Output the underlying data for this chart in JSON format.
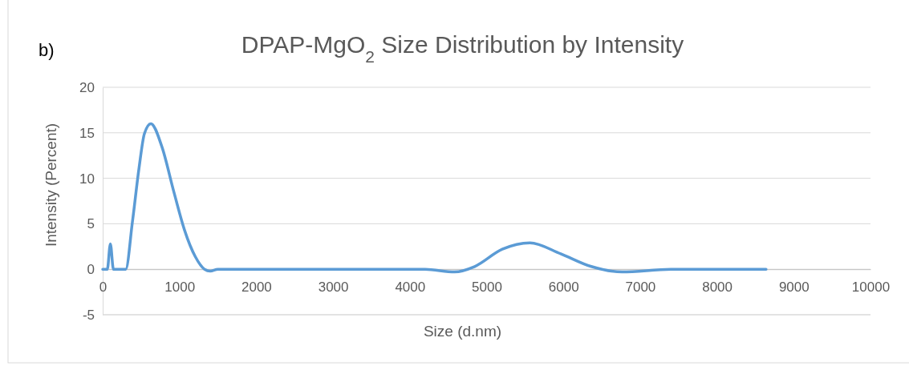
{
  "chart_data": {
    "type": "line",
    "title": "DPAP-MgO$_{2}$ Size Distribution by Intensity",
    "annotations": [
      "b)"
    ],
    "xlabel": "Size (d.nm)",
    "ylabel": "Intensity (Percent)",
    "xlim": [
      0,
      10000
    ],
    "xticks": [
      0,
      1000,
      2000,
      3000,
      4000,
      5000,
      6000,
      7000,
      8000,
      9000,
      10000
    ],
    "ylim": [
      -5,
      20
    ],
    "yticks": [
      -5,
      0,
      5,
      10,
      15,
      20
    ],
    "grid": "y",
    "marker": "none",
    "line_style": "solid",
    "series": [
      {
        "color": "#5b9bd5",
        "x": [
          0,
          60,
          100,
          140,
          180,
          280,
          300,
          387,
          473,
          543,
          627,
          770,
          927,
          1066,
          1205,
          1327,
          1400,
          1500,
          2500,
          3500,
          4200,
          4583,
          4845,
          5204,
          5564,
          5965,
          6364,
          6766,
          7400,
          8000,
          8640
        ],
        "values": [
          0,
          0,
          2.8,
          0,
          0,
          0,
          0,
          5.2,
          11.1,
          14.9,
          16,
          13.5,
          8.5,
          4.3,
          1.4,
          0,
          -0.2,
          0,
          0,
          0,
          0,
          -0.3,
          0.3,
          2.2,
          2.9,
          1.7,
          0.3,
          -0.3,
          0,
          0,
          0
        ]
      }
    ]
  }
}
